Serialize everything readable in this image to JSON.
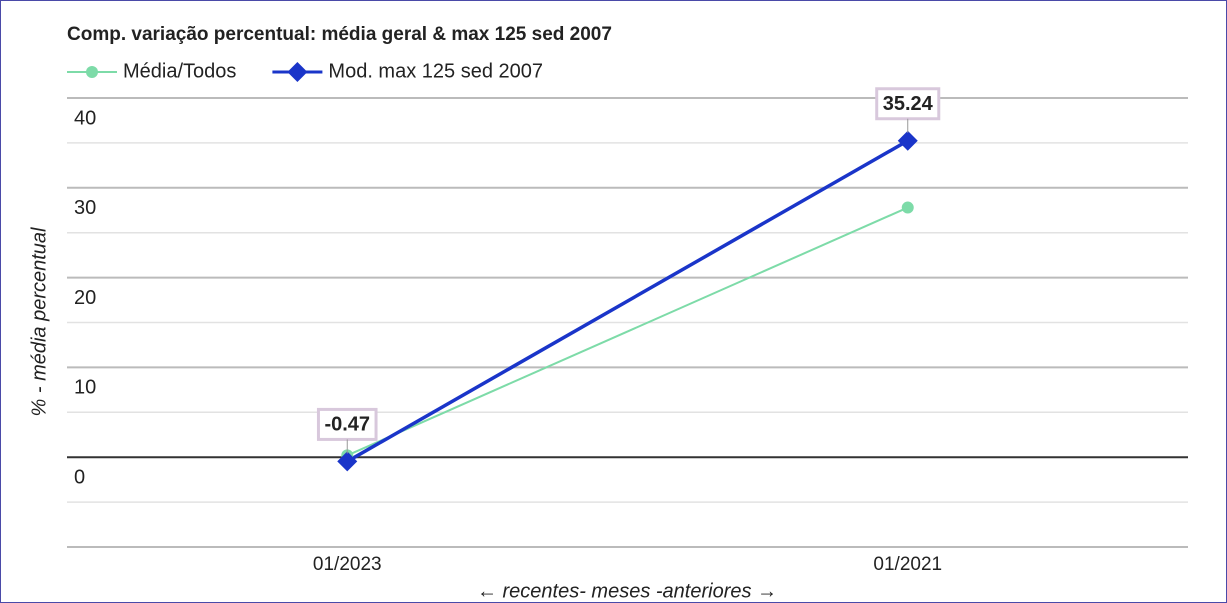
{
  "chart_data": {
    "type": "line",
    "title": "Comp. variação percentual: média geral & max 125 sed 2007",
    "y_label": "% - média percentual",
    "x_label": "← recentes- meses -anteriores →",
    "categories": [
      "01/2023",
      "01/2021"
    ],
    "series": [
      {
        "name": "Média/Todos",
        "color": "#7ddba8",
        "marker": "circle",
        "values": [
          0.2,
          27.8
        ]
      },
      {
        "name": "Mod. max 125 sed 2007",
        "color": "#1a35c9",
        "marker": "diamond",
        "labels": true,
        "values": [
          -0.47,
          35.24
        ]
      }
    ],
    "ylim": [
      -10,
      40
    ],
    "yticks": [
      0,
      10,
      20,
      30,
      40
    ],
    "minor_yticks": [
      -5,
      5,
      15,
      25,
      35
    ],
    "grid": true,
    "legend": "top"
  }
}
